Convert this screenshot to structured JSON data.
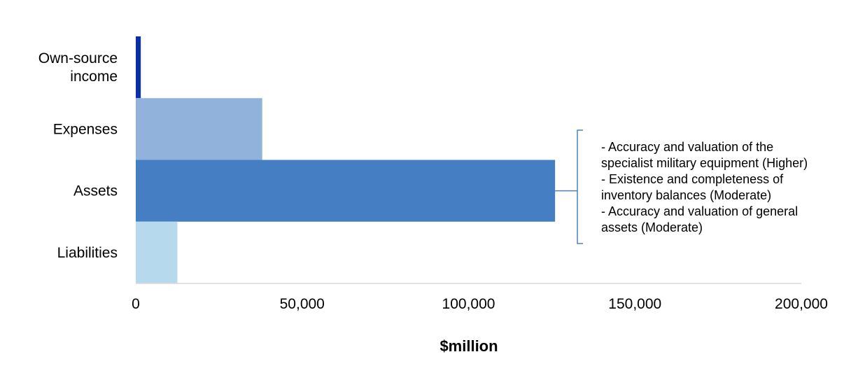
{
  "chart_data": {
    "type": "bar",
    "orientation": "horizontal",
    "categories": [
      "Own-source income",
      "Expenses",
      "Assets",
      "Liabilities"
    ],
    "category_label_lines": [
      [
        "Own-source",
        "income"
      ],
      [
        "Expenses"
      ],
      [
        "Assets"
      ],
      [
        "Liabilities"
      ]
    ],
    "values": [
      1500,
      38000,
      126000,
      12500
    ],
    "colors": [
      "#0a2fa8",
      "#91b3db",
      "#467ec3",
      "#b6d9ee"
    ],
    "xlabel": "$million",
    "xlim": [
      0,
      200000
    ],
    "xticks": [
      0,
      50000,
      100000,
      150000,
      200000
    ],
    "xtick_labels": [
      "0",
      "50,000",
      "100,000",
      "150,000",
      "200,000"
    ],
    "grid": false,
    "annotation": {
      "target_category": "Assets",
      "bracket_color": "#4f81bd",
      "lines": [
        "- Accuracy and valuation of the",
        "specialist military equipment (Higher)",
        "- Existence and completeness of",
        "inventory balances (Moderate)",
        "- Accuracy and valuation of general",
        "assets (Moderate)"
      ]
    }
  }
}
